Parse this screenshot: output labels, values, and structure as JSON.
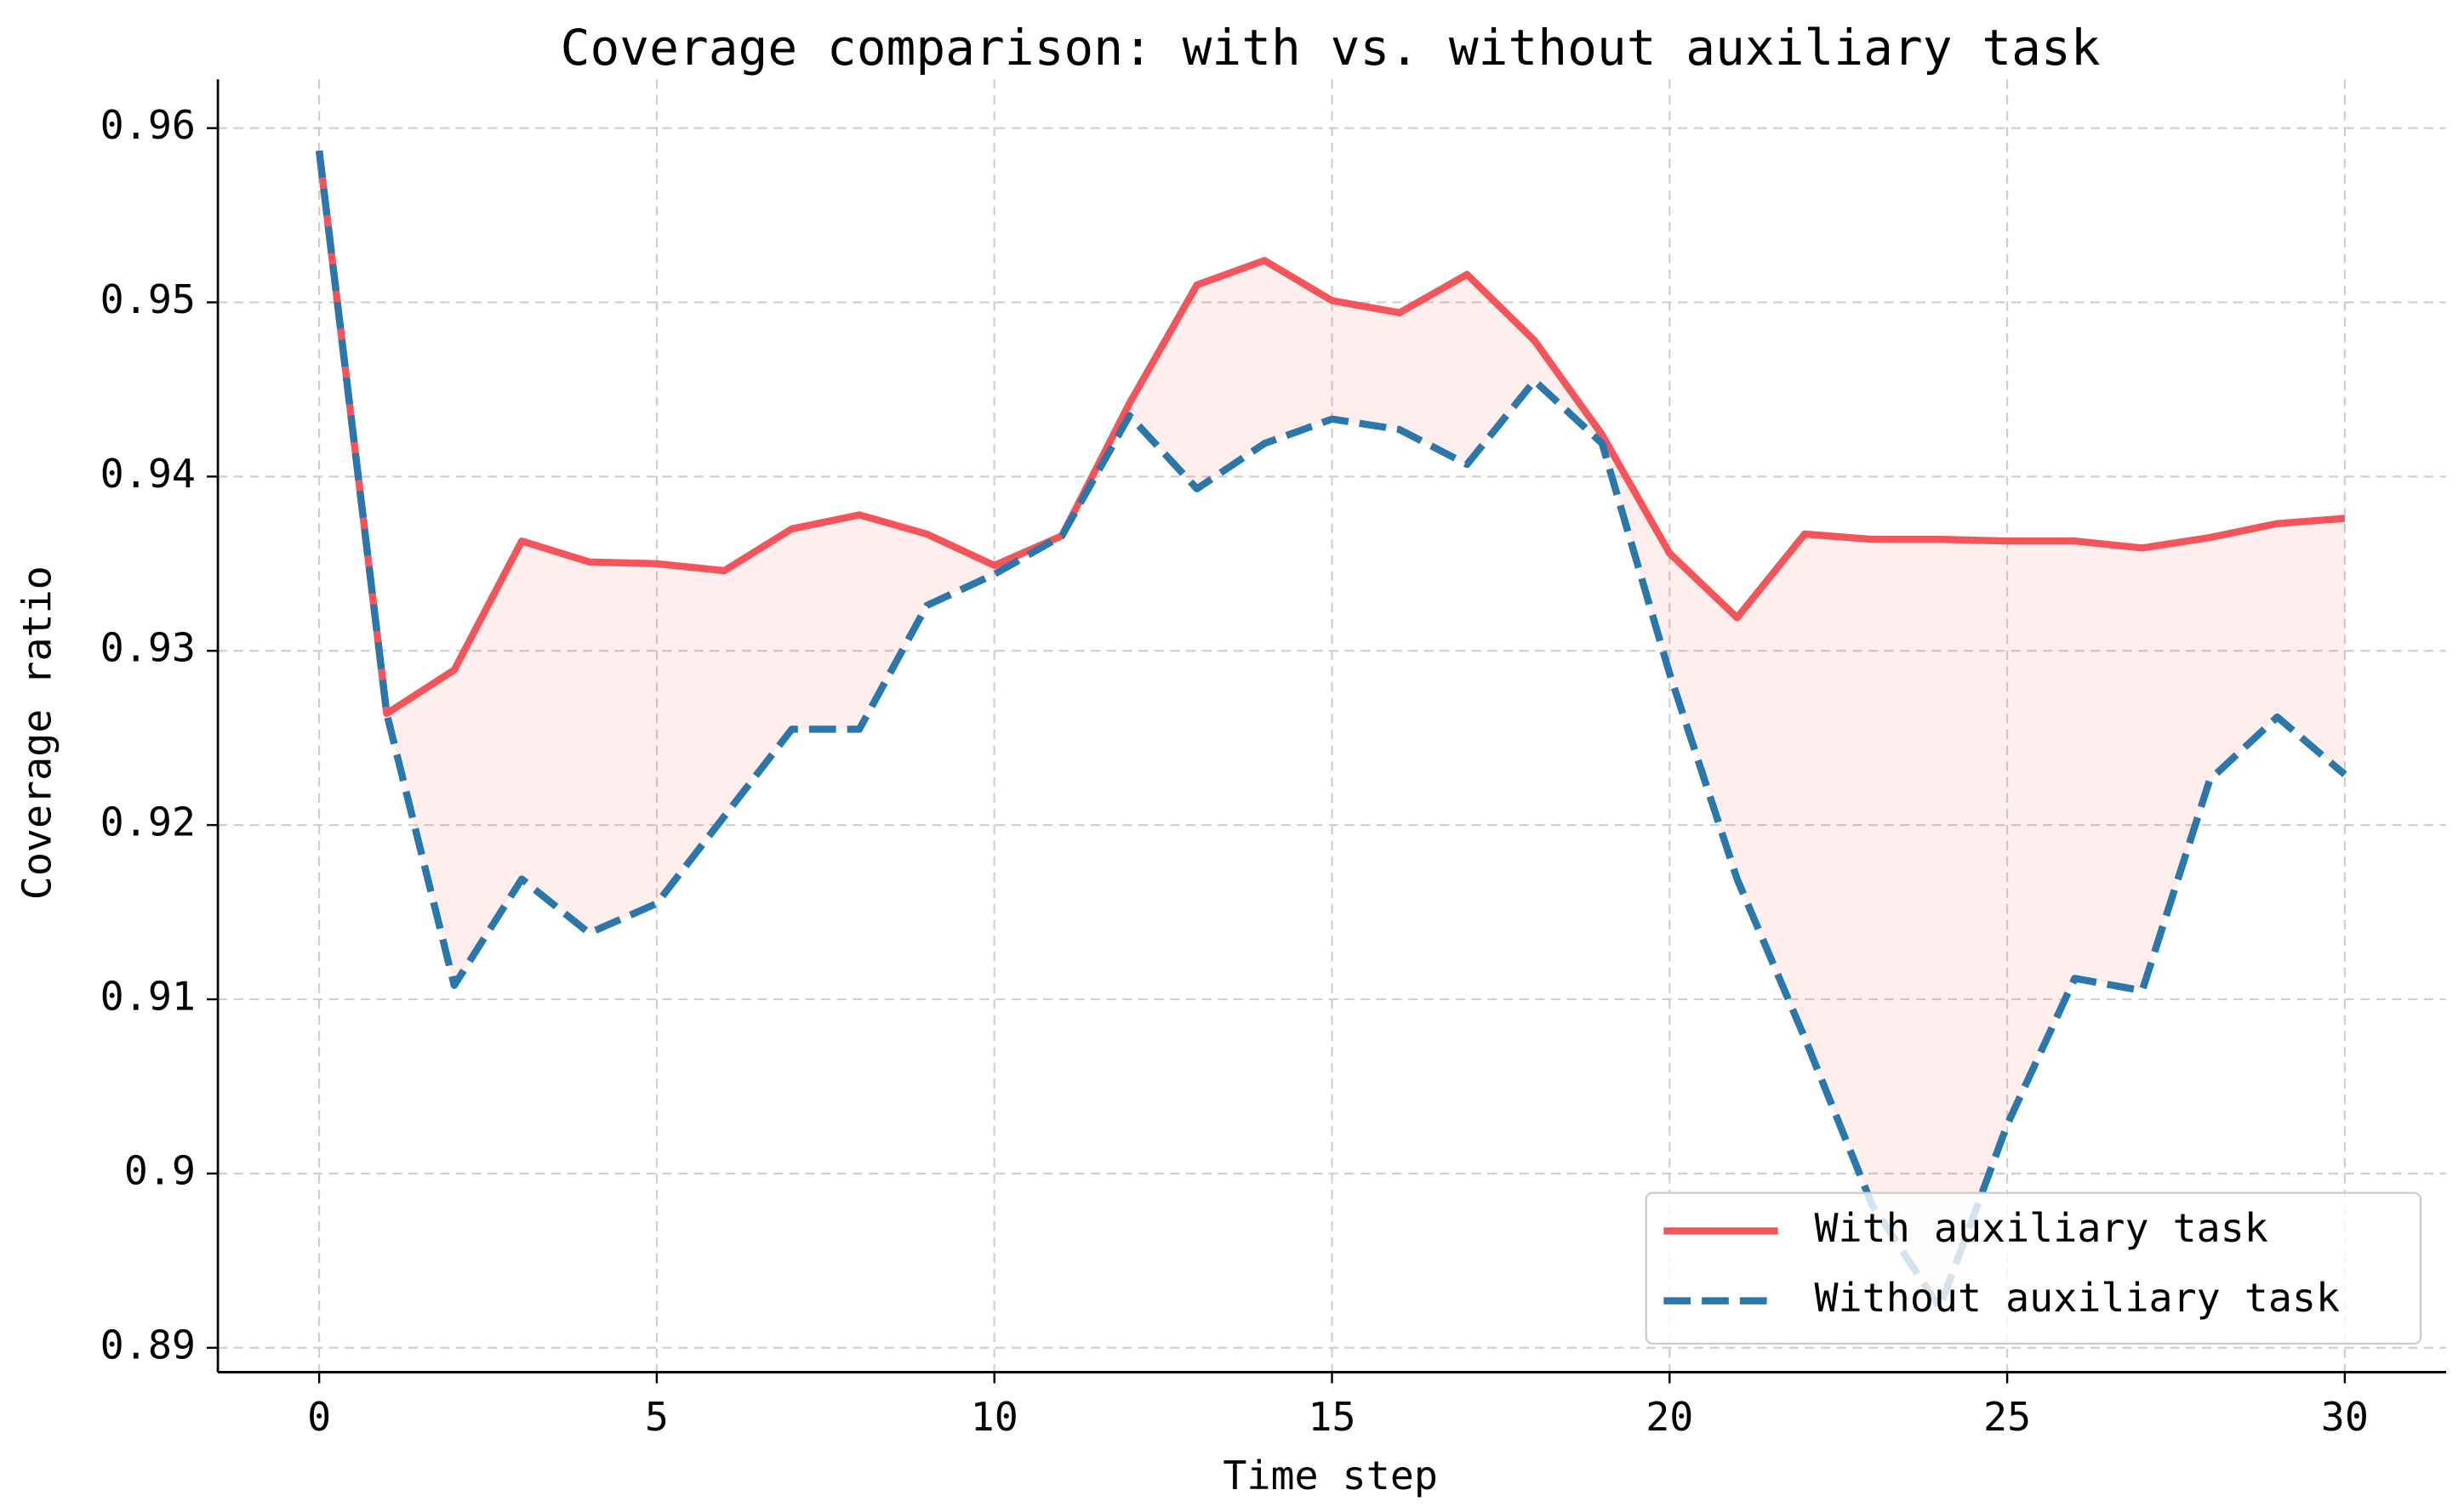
{
  "chart_data": {
    "type": "line",
    "title": "Coverage comparison: with vs. without auxiliary task",
    "x_label": "Time step",
    "y_label": "Coverage ratio",
    "x": [
      0,
      1,
      2,
      3,
      4,
      5,
      6,
      7,
      8,
      9,
      10,
      11,
      12,
      13,
      14,
      15,
      16,
      17,
      18,
      19,
      20,
      21,
      22,
      23,
      24,
      25,
      26,
      27,
      28,
      29,
      30
    ],
    "series": [
      {
        "name": "With auxiliary task",
        "color": "#f4555a",
        "linestyle": "solid",
        "values": [
          0.9587,
          0.9264,
          0.9289,
          0.9363,
          0.9351,
          0.935,
          0.9346,
          0.937,
          0.9378,
          0.9367,
          0.9349,
          0.9366,
          0.9442,
          0.951,
          0.9524,
          0.9501,
          0.9494,
          0.9516,
          0.9478,
          0.9424,
          0.9356,
          0.9319,
          0.9367,
          0.9364,
          0.9364,
          0.9363,
          0.9363,
          0.9359,
          0.9365,
          0.9373,
          0.9376
        ]
      },
      {
        "name": "Without auxiliary task",
        "color": "#2a77ab",
        "linestyle": "dashed",
        "values": [
          0.9587,
          0.9264,
          0.9108,
          0.9169,
          0.9138,
          0.9155,
          0.9205,
          0.9255,
          0.9255,
          0.9326,
          0.9344,
          0.9366,
          0.9435,
          0.9393,
          0.9419,
          0.9433,
          0.9427,
          0.9407,
          0.9455,
          0.9419,
          0.9287,
          0.9169,
          0.9078,
          0.8982,
          0.8923,
          0.9028,
          0.9112,
          0.9105,
          0.9226,
          0.9262,
          0.9229
        ]
      }
    ],
    "fill_between": true,
    "xlim": [
      -1.5,
      31.5
    ],
    "xticks": [
      0,
      5,
      10,
      15,
      20,
      25,
      30
    ],
    "ylim": [
      0.8886,
      0.9628
    ],
    "yticks": [
      0.89,
      0.9,
      0.91,
      0.92,
      0.93,
      0.94,
      0.95,
      0.96
    ],
    "grid": true,
    "legend": "lower right"
  }
}
